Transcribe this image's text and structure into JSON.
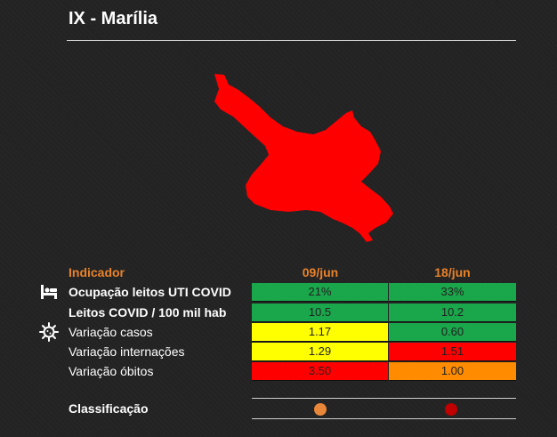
{
  "region_title": "IX - Marília",
  "table": {
    "header": {
      "indicator": "Indicador",
      "date1": "09/jun",
      "date2": "18/jun"
    },
    "rows": [
      {
        "label": "Ocupação leitos UTI COVID",
        "v1": "21%",
        "v2": "33%",
        "color1": "#1aa64a",
        "color2": "#1aa64a",
        "icon": "hospital-bed-icon"
      },
      {
        "label": "Leitos COVID / 100 mil hab",
        "v1": "10.5",
        "v2": "10.2",
        "color1": "#1aa64a",
        "color2": "#1aa64a"
      },
      {
        "label": "Variação casos",
        "v1": "1.17",
        "v2": "0.60",
        "color1": "#ffff00",
        "color2": "#1aa64a",
        "icon": "virus-icon"
      },
      {
        "label": "Variação internações",
        "v1": "1.29",
        "v2": "1.51",
        "color1": "#ffff00",
        "color2": "#ff0000"
      },
      {
        "label": "Variação óbitos",
        "v1": "3.50",
        "v2": "1.00",
        "color1": "#ff0000",
        "color2": "#ff8c00"
      }
    ]
  },
  "classification": {
    "label": "Classificação",
    "dot1_color": "#e8873a",
    "dot2_color": "#c00000"
  },
  "colors": {
    "map_fill": "#ff0000",
    "accent": "#e8822a"
  }
}
